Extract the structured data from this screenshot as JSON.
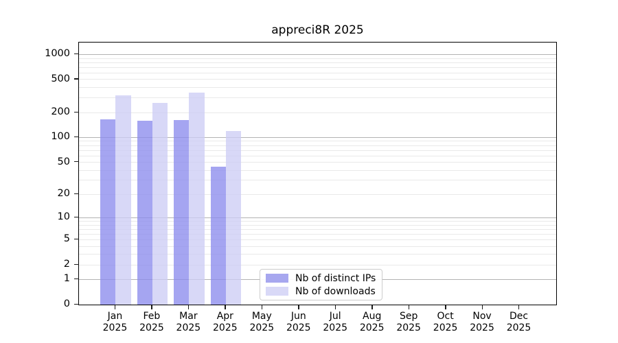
{
  "title": "appreci8R 2025",
  "chart_data": {
    "type": "bar",
    "title": "appreci8R 2025",
    "subtitle": "",
    "xlabel": "",
    "ylabel": "",
    "y_scale": "log1p",
    "ylim": [
      0,
      1400
    ],
    "grid": "on",
    "legend_position": "lower center",
    "year": "2025",
    "categories": [
      "Jan",
      "Feb",
      "Mar",
      "Apr",
      "May",
      "Jun",
      "Jul",
      "Aug",
      "Sep",
      "Oct",
      "Nov",
      "Dec"
    ],
    "series": [
      {
        "name": "Nb of distinct IPs",
        "color": "#a7a7ef",
        "values": [
          167,
          161,
          164,
          44,
          null,
          null,
          null,
          null,
          null,
          null,
          null,
          null
        ]
      },
      {
        "name": "Nb of downloads",
        "color": "#d9d9f7",
        "values": [
          325,
          263,
          346,
          120,
          null,
          null,
          null,
          null,
          null,
          null,
          null,
          null
        ]
      }
    ],
    "yticks": [
      0,
      1,
      2,
      5,
      10,
      20,
      50,
      100,
      200,
      500,
      1000
    ],
    "grid_major": [
      1,
      10,
      100,
      1000
    ],
    "grid_minor": [
      2,
      3,
      4,
      5,
      6,
      7,
      8,
      9,
      20,
      30,
      40,
      50,
      60,
      70,
      80,
      90,
      200,
      300,
      400,
      500,
      600,
      700,
      800,
      900
    ],
    "colors": {
      "bar_ips_fill": "rgba(140,140,237,0.78)",
      "bar_downloads_fill": "rgba(205,205,245,0.78)",
      "grid_major": "#b2b2b2",
      "grid_minor": "#e9e9e9",
      "spine": "#000000"
    }
  },
  "legend": {
    "items": [
      {
        "label": "Nb of distinct IPs"
      },
      {
        "label": "Nb of downloads"
      }
    ]
  }
}
